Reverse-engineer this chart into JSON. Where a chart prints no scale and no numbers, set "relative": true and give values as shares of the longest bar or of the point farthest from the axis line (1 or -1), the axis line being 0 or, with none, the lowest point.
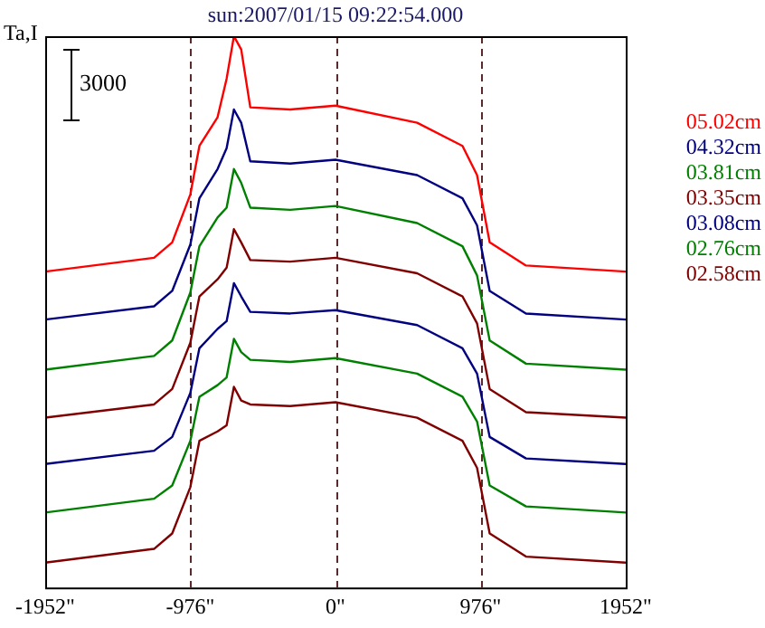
{
  "chart_data": {
    "type": "line",
    "title": "sun:2007/01/15 09:22:54.000",
    "ylabel": "Ta,I",
    "relative": true,
    "legend": "right",
    "marker": "none",
    "line_style": "solid",
    "grid": false,
    "annotations": [
      "3000"
    ],
    "xlim": [
      -1952,
      1952
    ],
    "xticks": [
      {
        "value": -1952,
        "label": "-1952\""
      },
      {
        "value": -976,
        "label": "-976\""
      },
      {
        "value": 0,
        "label": "0\""
      },
      {
        "value": 976,
        "label": "976\""
      },
      {
        "value": 1952,
        "label": "1952\""
      }
    ],
    "ref_lines": [
      {
        "axis": "x",
        "value": -976,
        "color": "#5a2a2a",
        "line_style": "dashed"
      },
      {
        "axis": "x",
        "value": 0,
        "color": "#5a2a2a",
        "line_style": "dashed"
      },
      {
        "axis": "x",
        "value": 976,
        "color": "#5a2a2a",
        "line_style": "dashed"
      }
    ],
    "x": [
      -1952,
      -1220,
      -1098,
      -976,
      -915,
      -793,
      -732,
      -683,
      -634,
      -573,
      -305,
      0,
      549,
      854,
      952,
      1037,
      1281,
      1952
    ],
    "series": [
      {
        "name": "05.02cm",
        "color": "#ff0000",
        "values": [
          0.573,
          0.598,
          0.626,
          0.713,
          0.801,
          0.853,
          0.923,
          1,
          0.976,
          0.871,
          0.867,
          0.874,
          0.843,
          0.801,
          0.748,
          0.626,
          0.584,
          0.573
        ]
      },
      {
        "name": "04.32cm",
        "color": "#000080",
        "values": [
          0.486,
          0.51,
          0.538,
          0.622,
          0.706,
          0.759,
          0.797,
          0.867,
          0.843,
          0.773,
          0.769,
          0.776,
          0.748,
          0.706,
          0.657,
          0.538,
          0.497,
          0.486
        ]
      },
      {
        "name": "03.81cm",
        "color": "#008000",
        "values": [
          0.395,
          0.42,
          0.448,
          0.535,
          0.619,
          0.671,
          0.689,
          0.759,
          0.734,
          0.689,
          0.685,
          0.692,
          0.661,
          0.619,
          0.566,
          0.448,
          0.406,
          0.395
        ]
      },
      {
        "name": "03.35cm",
        "color": "#800000",
        "values": [
          0.308,
          0.332,
          0.36,
          0.444,
          0.528,
          0.559,
          0.58,
          0.65,
          0.626,
          0.594,
          0.591,
          0.598,
          0.57,
          0.528,
          0.479,
          0.36,
          0.318,
          0.308
        ]
      },
      {
        "name": "03.08cm",
        "color": "#000080",
        "values": [
          0.224,
          0.248,
          0.273,
          0.353,
          0.434,
          0.469,
          0.483,
          0.552,
          0.528,
          0.5,
          0.497,
          0.503,
          0.476,
          0.434,
          0.388,
          0.273,
          0.234,
          0.224
        ]
      },
      {
        "name": "02.76cm",
        "color": "#008000",
        "values": [
          0.136,
          0.161,
          0.185,
          0.266,
          0.346,
          0.367,
          0.381,
          0.451,
          0.427,
          0.413,
          0.409,
          0.416,
          0.388,
          0.346,
          0.301,
          0.185,
          0.147,
          0.136
        ]
      },
      {
        "name": "02.58cm",
        "color": "#800000",
        "values": [
          0.045,
          0.07,
          0.098,
          0.182,
          0.266,
          0.283,
          0.294,
          0.364,
          0.339,
          0.332,
          0.329,
          0.336,
          0.308,
          0.266,
          0.217,
          0.098,
          0.056,
          0.045
        ]
      }
    ]
  }
}
